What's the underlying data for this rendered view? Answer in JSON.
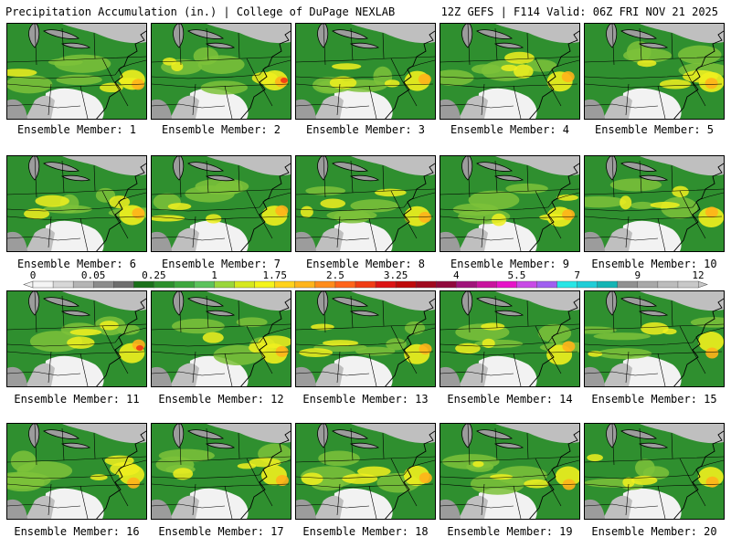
{
  "header": {
    "left": "Precipitation Accumulation (in.) | College of DuPage NEXLAB",
    "right": "12Z GEFS | F114 Valid: 06Z FRI NOV 21 2025"
  },
  "legend": {
    "ticks": [
      "0",
      "0.05",
      "0.25",
      "1",
      "1.75",
      "2.5",
      "3.25",
      "4",
      "5.5",
      "7",
      "9",
      "12"
    ],
    "colors": [
      "#f4f4f4",
      "#d7d7d7",
      "#b4b4b4",
      "#8c8c8c",
      "#6e6e6e",
      "#197019",
      "#2c8f2c",
      "#3ea73e",
      "#5cc25c",
      "#9ad63a",
      "#d6e81e",
      "#f4f41a",
      "#ffd21a",
      "#ffb41a",
      "#ff8c1a",
      "#ff641a",
      "#f03c14",
      "#dc1414",
      "#be0a0a",
      "#a00a1e",
      "#900a3c",
      "#a0147a",
      "#c8149e",
      "#e614c8",
      "#c84ae6",
      "#a060f0",
      "#28e6e6",
      "#1ecdd7",
      "#14b4b4",
      "#909090",
      "#a8a8a8",
      "#bcbcbc",
      "#c8c8c8"
    ]
  },
  "map_colors": {
    "gray_light": "#f2f2f2",
    "gray_1": "#dcdcdc",
    "gray_2": "#bfbfbf",
    "gray_3": "#9c9c9c",
    "gray_4": "#808080",
    "green_dark": "#1a6e1a",
    "green_mid": "#2f8f2f",
    "green_light": "#44ad44",
    "green_lime": "#7cc23a",
    "yellow": "#f0f01e",
    "orange": "#ffb31a",
    "red": "#f03c14"
  },
  "members": [
    {
      "label": "Ensemble Member: 1"
    },
    {
      "label": "Ensemble Member: 2"
    },
    {
      "label": "Ensemble Member: 3"
    },
    {
      "label": "Ensemble Member: 4"
    },
    {
      "label": "Ensemble Member: 5"
    },
    {
      "label": "Ensemble Member: 6"
    },
    {
      "label": "Ensemble Member: 7"
    },
    {
      "label": "Ensemble Member: 8"
    },
    {
      "label": "Ensemble Member: 9"
    },
    {
      "label": "Ensemble Member: 10"
    },
    {
      "label": "Ensemble Member: 11"
    },
    {
      "label": "Ensemble Member: 12"
    },
    {
      "label": "Ensemble Member: 13"
    },
    {
      "label": "Ensemble Member: 14"
    },
    {
      "label": "Ensemble Member: 15"
    },
    {
      "label": "Ensemble Member: 16"
    },
    {
      "label": "Ensemble Member: 17"
    },
    {
      "label": "Ensemble Member: 18"
    },
    {
      "label": "Ensemble Member: 19"
    },
    {
      "label": "Ensemble Member: 20"
    }
  ]
}
